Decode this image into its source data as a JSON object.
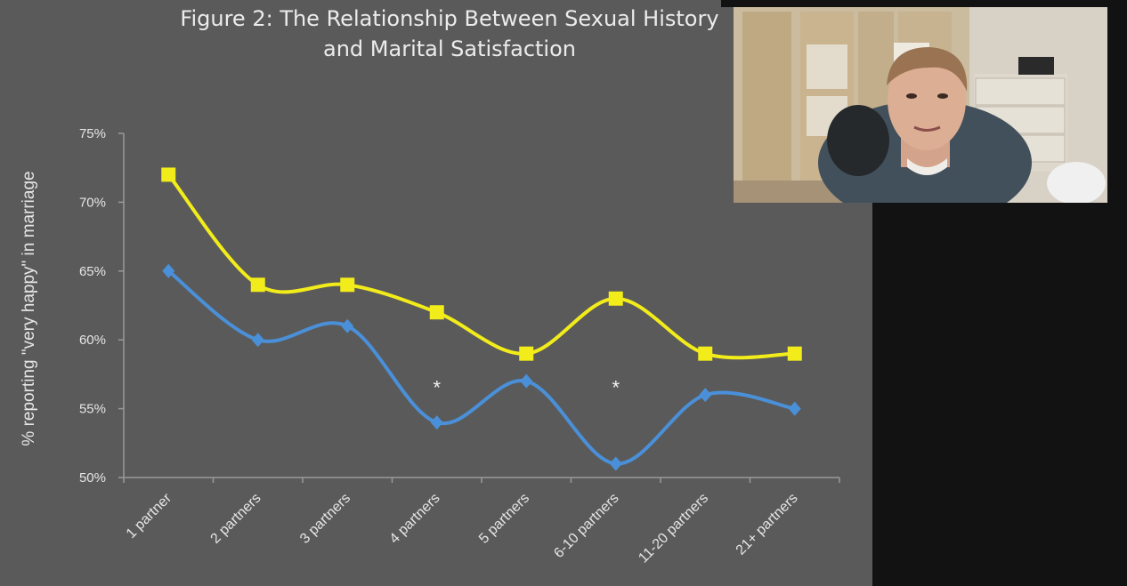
{
  "figure": {
    "title_line1": "Figure  2: The Relationship Between Sexual History",
    "title_line2": "and Marital Satisfaction"
  },
  "chart_data": {
    "type": "line",
    "title": "Figure  2: The Relationship Between Sexual History and Marital Satisfaction",
    "xlabel": "",
    "ylabel": "% reporting \"very happy\" in marriage",
    "categories": [
      "1 partner",
      "2 partners",
      "3 partners",
      "4 partners",
      "5 partners",
      "6-10 partners",
      "11-20 partners",
      "21+ partners"
    ],
    "y_ticks": [
      "50%",
      "55%",
      "60%",
      "65%",
      "70%",
      "75%"
    ],
    "ylim": [
      50,
      75
    ],
    "grid": false,
    "legend": "none",
    "series": [
      {
        "color": "#f2ec1b",
        "marker": "square",
        "values": [
          72,
          64,
          64,
          62,
          59,
          63,
          59,
          59
        ]
      },
      {
        "color": "#4a90d9",
        "marker": "diamond",
        "values": [
          65,
          60,
          61,
          54,
          57,
          51,
          56,
          55
        ]
      }
    ],
    "annotations": [
      {
        "text": "*",
        "category": "4 partners",
        "y": 56.7
      },
      {
        "text": "*",
        "category": "6-10 partners",
        "y": 56.7
      }
    ]
  },
  "webcam": {
    "icon": "webcam-feed-icon"
  }
}
